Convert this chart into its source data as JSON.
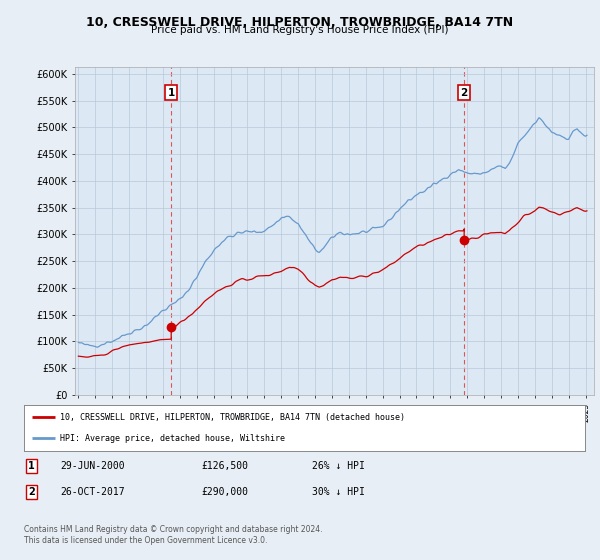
{
  "title": "10, CRESSWELL DRIVE, HILPERTON, TROWBRIDGE, BA14 7TN",
  "subtitle": "Price paid vs. HM Land Registry's House Price Index (HPI)",
  "ylim": [
    0,
    612500
  ],
  "xlim_start": 1994.8,
  "xlim_end": 2025.5,
  "yticks": [
    0,
    50000,
    100000,
    150000,
    200000,
    250000,
    300000,
    350000,
    400000,
    450000,
    500000,
    550000,
    600000
  ],
  "ytick_labels": [
    "£0",
    "£50K",
    "£100K",
    "£150K",
    "£200K",
    "£250K",
    "£300K",
    "£350K",
    "£400K",
    "£450K",
    "£500K",
    "£550K",
    "£600K"
  ],
  "background_color": "#e8eef5",
  "plot_background": "#dde8f5",
  "grid_color": "#b8c8d8",
  "sale1_x": 2000.49,
  "sale1_y": 126500,
  "sale1_label": "1",
  "sale2_x": 2017.82,
  "sale2_y": 290000,
  "sale2_label": "2",
  "red_line_color": "#cc0000",
  "blue_line_color": "#6699cc",
  "vline_color": "#dd4444",
  "legend_entry1": "10, CRESSWELL DRIVE, HILPERTON, TROWBRIDGE, BA14 7TN (detached house)",
  "legend_entry2": "HPI: Average price, detached house, Wiltshire",
  "table_row1": [
    "1",
    "29-JUN-2000",
    "£126,500",
    "26% ↓ HPI"
  ],
  "table_row2": [
    "2",
    "26-OCT-2017",
    "£290,000",
    "30% ↓ HPI"
  ],
  "footnote1": "Contains HM Land Registry data © Crown copyright and database right 2024.",
  "footnote2": "This data is licensed under the Open Government Licence v3.0."
}
